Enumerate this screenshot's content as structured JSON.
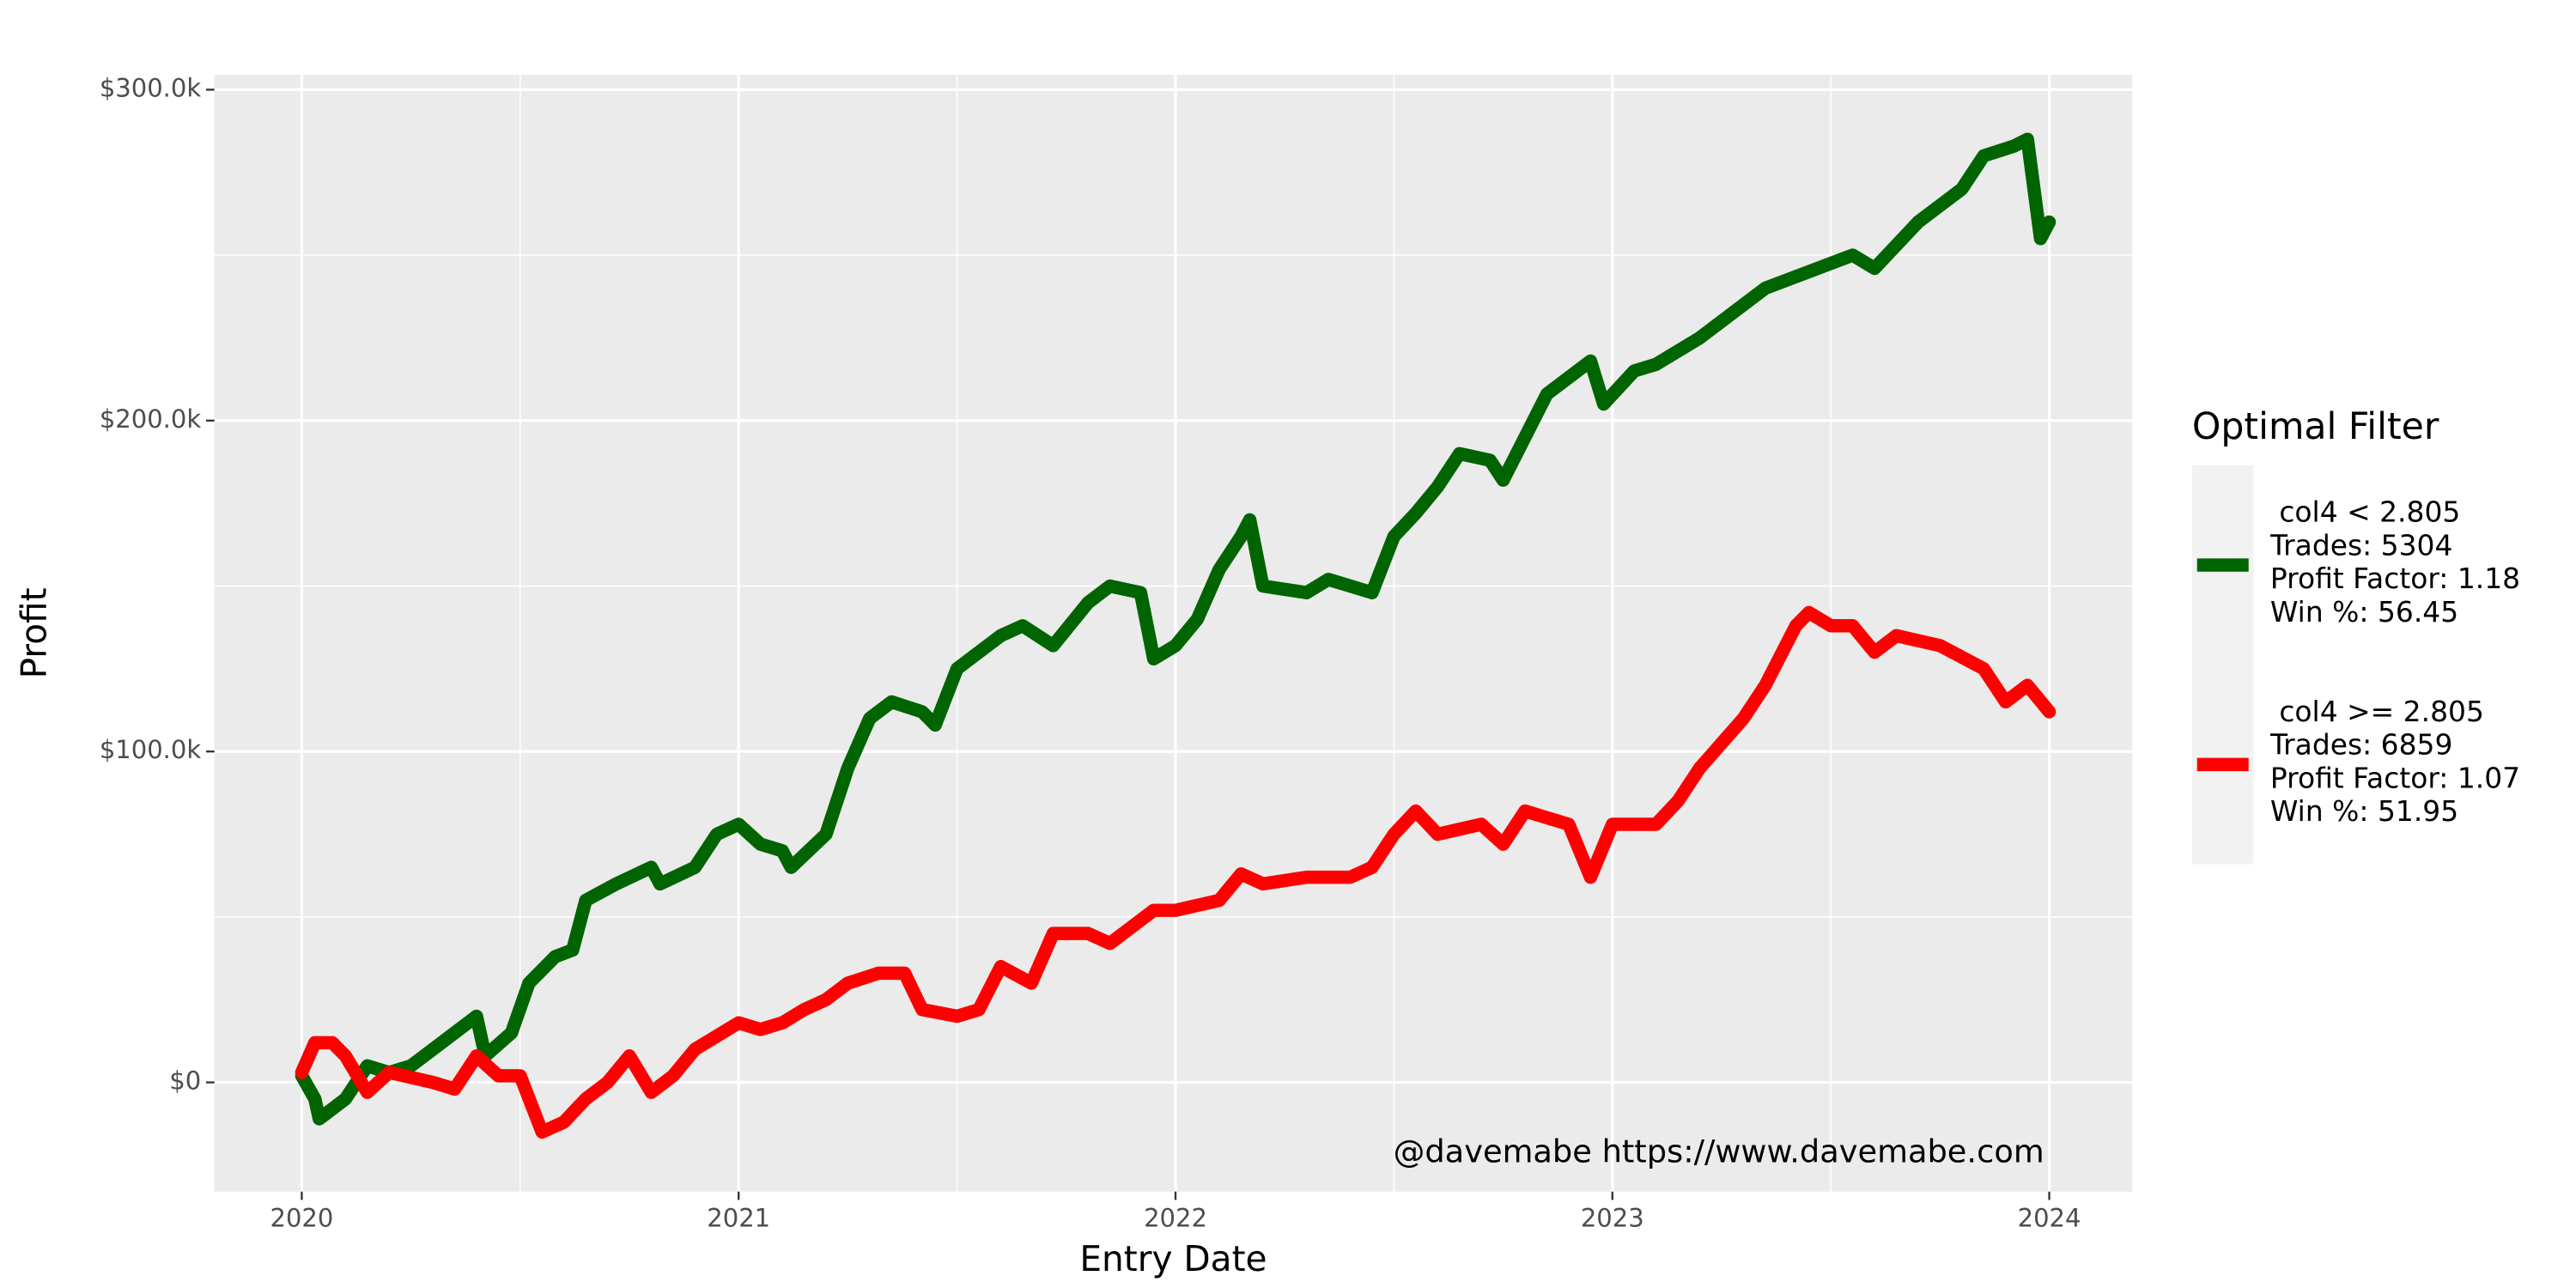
{
  "chart_data": {
    "type": "line",
    "xlabel": "Entry Date",
    "ylabel": "Profit",
    "legend_title": "Optimal Filter",
    "annotation": "@davemabe https://www.davemabe.com",
    "legend_position": "right",
    "grid": true,
    "xlim": [
      2019.8,
      2024.19
    ],
    "ylim": [
      -33,
      304.5
    ],
    "xticks": [
      2020,
      2021,
      2022,
      2023,
      2024
    ],
    "yticks": [
      {
        "value": 0,
        "label": "$0"
      },
      {
        "value": 100,
        "label": "$100.0k"
      },
      {
        "value": 200,
        "label": "$200.0k"
      },
      {
        "value": 300,
        "label": "$300.0k"
      }
    ],
    "series": [
      {
        "name": " col4 < 2.805\nTrades: 5304\nProfit Factor: 1.18\nWin %: 56.45",
        "color": "#006400",
        "x": [
          2020.0,
          2020.03,
          2020.04,
          2020.1,
          2020.15,
          2020.2,
          2020.25,
          2020.3,
          2020.35,
          2020.4,
          2020.42,
          2020.48,
          2020.52,
          2020.58,
          2020.62,
          2020.65,
          2020.72,
          2020.8,
          2020.82,
          2020.9,
          2020.95,
          2021.0,
          2021.05,
          2021.1,
          2021.12,
          2021.2,
          2021.25,
          2021.3,
          2021.35,
          2021.42,
          2021.45,
          2021.5,
          2021.6,
          2021.65,
          2021.72,
          2021.8,
          2021.85,
          2021.92,
          2021.95,
          2022.0,
          2022.05,
          2022.1,
          2022.15,
          2022.17,
          2022.2,
          2022.3,
          2022.35,
          2022.45,
          2022.5,
          2022.55,
          2022.6,
          2022.65,
          2022.72,
          2022.75,
          2022.8,
          2022.85,
          2022.95,
          2022.98,
          2023.05,
          2023.1,
          2023.2,
          2023.3,
          2023.35,
          2023.45,
          2023.55,
          2023.6,
          2023.7,
          2023.8,
          2023.85,
          2023.92,
          2023.95,
          2023.97,
          2023.98,
          2024.0
        ],
        "values": [
          2,
          -5,
          -11,
          -5,
          5,
          3,
          5,
          10,
          15,
          20,
          8,
          15,
          30,
          38,
          40,
          55,
          60,
          65,
          60,
          65,
          75,
          78,
          72,
          70,
          65,
          75,
          95,
          110,
          115,
          112,
          108,
          125,
          135,
          138,
          132,
          145,
          150,
          148,
          128,
          132,
          140,
          155,
          165,
          170,
          150,
          148,
          152,
          148,
          165,
          172,
          180,
          190,
          188,
          182,
          195,
          208,
          218,
          205,
          215,
          217,
          225,
          235,
          240,
          245,
          250,
          246,
          260,
          270,
          280,
          283,
          285,
          265,
          255,
          260
        ]
      },
      {
        "name": " col4 >= 2.805\nTrades: 6859\nProfit Factor: 1.07\nWin %: 51.95",
        "color": "#ff0000",
        "x": [
          2020.0,
          2020.03,
          2020.07,
          2020.1,
          2020.15,
          2020.2,
          2020.3,
          2020.35,
          2020.4,
          2020.45,
          2020.5,
          2020.55,
          2020.6,
          2020.65,
          2020.7,
          2020.75,
          2020.8,
          2020.85,
          2020.9,
          2021.0,
          2021.05,
          2021.1,
          2021.15,
          2021.2,
          2021.25,
          2021.32,
          2021.38,
          2021.42,
          2021.5,
          2021.55,
          2021.6,
          2021.67,
          2021.72,
          2021.8,
          2021.85,
          2021.95,
          2022.0,
          2022.1,
          2022.15,
          2022.2,
          2022.3,
          2022.4,
          2022.45,
          2022.5,
          2022.55,
          2022.6,
          2022.7,
          2022.75,
          2022.8,
          2022.9,
          2022.95,
          2023.0,
          2023.1,
          2023.15,
          2023.2,
          2023.3,
          2023.35,
          2023.42,
          2023.45,
          2023.5,
          2023.55,
          2023.6,
          2023.65,
          2023.75,
          2023.85,
          2023.9,
          2023.95,
          2024.0
        ],
        "values": [
          3,
          12,
          12,
          8,
          -3,
          3,
          0,
          -2,
          8,
          2,
          2,
          -15,
          -12,
          -5,
          0,
          8,
          -3,
          2,
          10,
          18,
          16,
          18,
          22,
          25,
          30,
          33,
          33,
          22,
          20,
          22,
          35,
          30,
          45,
          45,
          42,
          52,
          52,
          55,
          63,
          60,
          62,
          62,
          65,
          75,
          82,
          75,
          78,
          72,
          82,
          78,
          62,
          78,
          78,
          85,
          95,
          110,
          120,
          138,
          142,
          138,
          138,
          130,
          135,
          132,
          125,
          115,
          120,
          112
        ]
      }
    ]
  }
}
